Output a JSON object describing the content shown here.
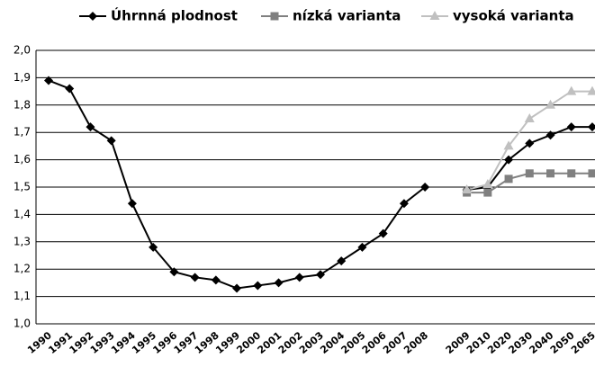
{
  "chart_data": {
    "type": "line",
    "categories": [
      "1990",
      "1991",
      "1992",
      "1993",
      "1994",
      "1995",
      "1996",
      "1997",
      "1998",
      "1999",
      "2000",
      "2001",
      "2002",
      "2003",
      "2004",
      "2005",
      "2006",
      "2007",
      "2008",
      null,
      "2009",
      "2010",
      "2020",
      "2030",
      "2040",
      "2050",
      "2065"
    ],
    "series": [
      {
        "name": "Úhrnná plodnost",
        "color": "#000000",
        "marker": "diamond",
        "values": [
          1.89,
          1.86,
          1.72,
          1.67,
          1.44,
          1.28,
          1.19,
          1.17,
          1.16,
          1.13,
          1.14,
          1.15,
          1.17,
          1.18,
          1.23,
          1.28,
          1.33,
          1.44,
          1.5,
          null,
          1.49,
          1.5,
          1.6,
          1.66,
          1.69,
          1.72,
          1.72
        ]
      },
      {
        "name": "nízká varianta",
        "color": "#808080",
        "marker": "square",
        "values": [
          null,
          null,
          null,
          null,
          null,
          null,
          null,
          null,
          null,
          null,
          null,
          null,
          null,
          null,
          null,
          null,
          null,
          null,
          null,
          null,
          1.48,
          1.48,
          1.53,
          1.55,
          1.55,
          1.55,
          1.55
        ]
      },
      {
        "name": "vysoká varianta",
        "color": "#c0c0c0",
        "marker": "triangle",
        "values": [
          null,
          null,
          null,
          null,
          null,
          null,
          null,
          null,
          null,
          null,
          null,
          null,
          null,
          null,
          null,
          null,
          null,
          null,
          null,
          null,
          1.49,
          1.51,
          1.65,
          1.75,
          1.8,
          1.85,
          1.85
        ]
      }
    ],
    "ylim": [
      1.0,
      2.0
    ],
    "yticks": [
      {
        "value": 1.0,
        "label": "1,0"
      },
      {
        "value": 1.1,
        "label": "1,1"
      },
      {
        "value": 1.2,
        "label": "1,2"
      },
      {
        "value": 1.3,
        "label": "1,3"
      },
      {
        "value": 1.4,
        "label": "1,4"
      },
      {
        "value": 1.5,
        "label": "1,5"
      },
      {
        "value": 1.6,
        "label": "1,6"
      },
      {
        "value": 1.7,
        "label": "1,7"
      },
      {
        "value": 1.8,
        "label": "1,8"
      },
      {
        "value": 1.9,
        "label": "1,9"
      },
      {
        "value": 2.0,
        "label": "2,0"
      }
    ],
    "grid": true,
    "legend": "top"
  }
}
